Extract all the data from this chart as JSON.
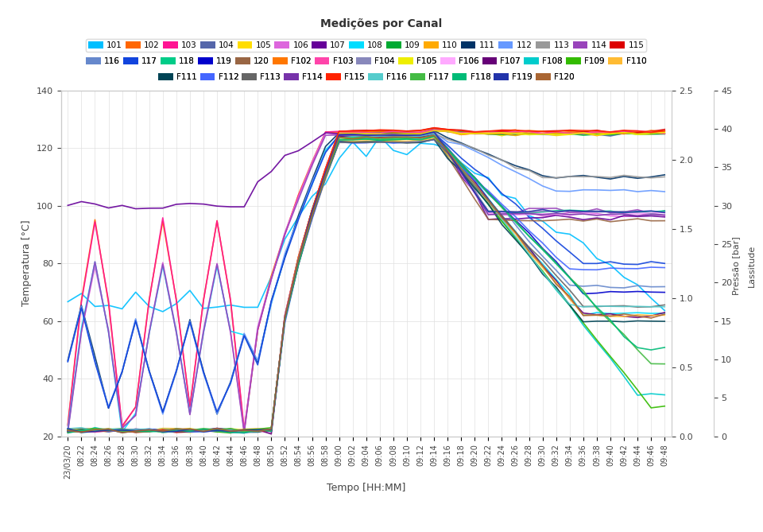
{
  "title": "Medições por Canal",
  "xlabel": "Tempo [HH:MM]",
  "ylabel_left": "Temperatura [°C]",
  "ylabel_right": "Leitura\nPressão [bar]",
  "ylim_left": [
    20,
    140
  ],
  "background_color": "#ffffff",
  "grid_color": "#e0e0e0",
  "time_labels": [
    "23/03/20",
    "08:22",
    "08:24",
    "08:26",
    "08:28",
    "08:30",
    "08:32",
    "08:34",
    "08:36",
    "08:38",
    "08:40",
    "08:42",
    "08:44",
    "08:46",
    "08:48",
    "08:50",
    "08:52",
    "08:54",
    "08:56",
    "08:58",
    "09:00",
    "09:02",
    "09:04",
    "09:06",
    "09:08",
    "09:10",
    "09:12",
    "09:14",
    "09:16",
    "09:18",
    "09:20",
    "09:22",
    "09:24",
    "09:26",
    "09:28",
    "09:30",
    "09:32",
    "09:34",
    "09:36",
    "09:38",
    "09:40",
    "09:42",
    "09:44",
    "09:46",
    "09:48"
  ],
  "legend_rows": [
    [
      {
        "label": "101",
        "color": "#00bfff"
      },
      {
        "label": "102",
        "color": "#ff6600"
      },
      {
        "label": "103",
        "color": "#ff1493"
      },
      {
        "label": "104",
        "color": "#5566aa"
      },
      {
        "label": "105",
        "color": "#ffdd00"
      },
      {
        "label": "106",
        "color": "#dd66dd"
      },
      {
        "label": "107",
        "color": "#660099"
      },
      {
        "label": "108",
        "color": "#00ddff"
      },
      {
        "label": "109",
        "color": "#00aa33"
      },
      {
        "label": "110",
        "color": "#ffaa00"
      },
      {
        "label": "111",
        "color": "#003366"
      },
      {
        "label": "112",
        "color": "#6699ff"
      },
      {
        "label": "113",
        "color": "#999999"
      },
      {
        "label": "114",
        "color": "#9944bb"
      },
      {
        "label": "115",
        "color": "#dd0000"
      }
    ],
    [
      {
        "label": "116",
        "color": "#6688cc"
      },
      {
        "label": "117",
        "color": "#1144dd"
      },
      {
        "label": "118",
        "color": "#00cc88"
      },
      {
        "label": "119",
        "color": "#0000cc"
      },
      {
        "label": "120",
        "color": "#996644"
      },
      {
        "label": "F102",
        "color": "#ff7700"
      },
      {
        "label": "F103",
        "color": "#ff44aa"
      },
      {
        "label": "F104",
        "color": "#8888bb"
      },
      {
        "label": "F105",
        "color": "#eeee00"
      },
      {
        "label": "F106",
        "color": "#ffaaff"
      },
      {
        "label": "F107",
        "color": "#660077"
      },
      {
        "label": "F108",
        "color": "#00cccc"
      },
      {
        "label": "F109",
        "color": "#33bb00"
      },
      {
        "label": "F110",
        "color": "#ffbb33"
      }
    ],
    [
      {
        "label": "F111",
        "color": "#004455"
      },
      {
        "label": "F112",
        "color": "#4466ff"
      },
      {
        "label": "F113",
        "color": "#666666"
      },
      {
        "label": "F114",
        "color": "#7733aa"
      },
      {
        "label": "F115",
        "color": "#ff2200"
      },
      {
        "label": "F116",
        "color": "#55cccc"
      },
      {
        "label": "F117",
        "color": "#44bb44"
      },
      {
        "label": "F118",
        "color": "#00bb77"
      },
      {
        "label": "F119",
        "color": "#2233aa"
      },
      {
        "label": "F120",
        "color": "#aa6633"
      }
    ]
  ]
}
